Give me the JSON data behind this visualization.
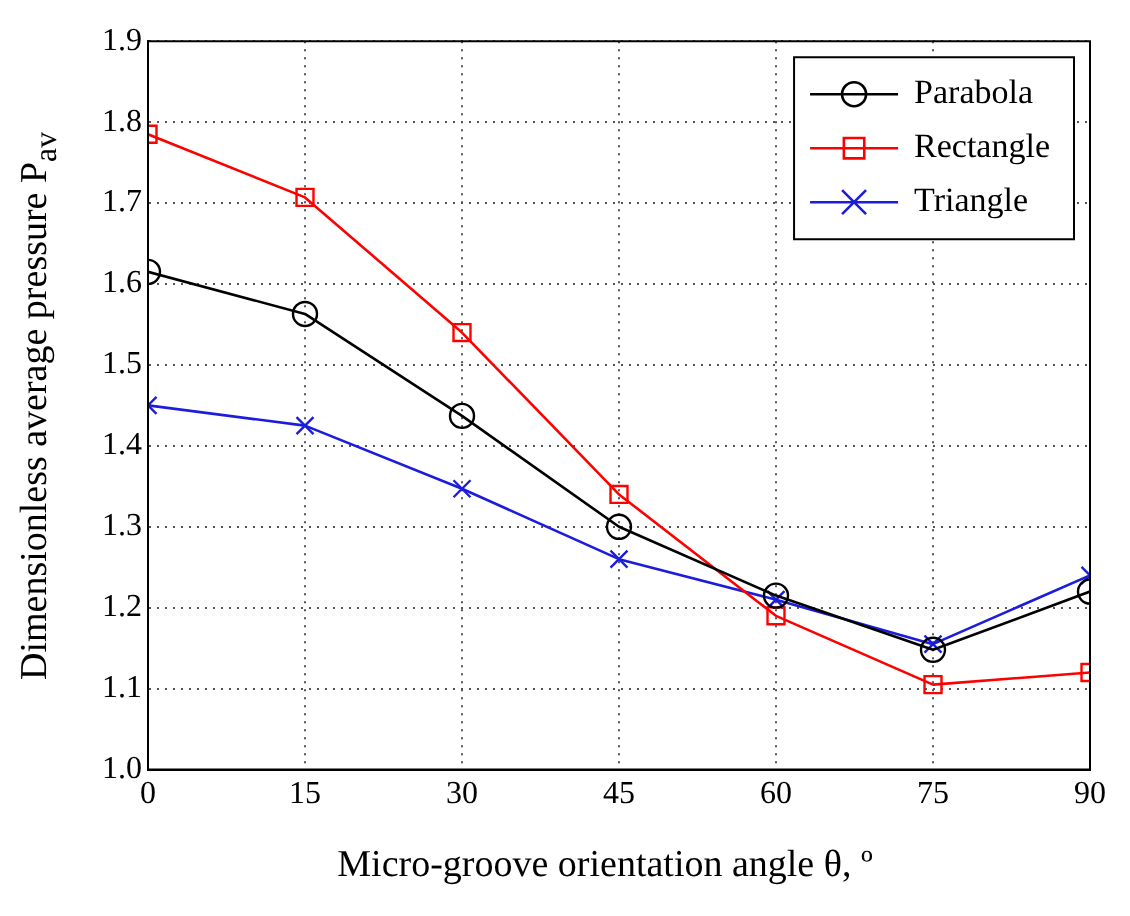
{
  "chart_data": {
    "type": "line",
    "xlabel": "Micro-groove orientation angle θ, º",
    "ylabel": "Dimensionless average pressure P$_{av}$",
    "x": [
      0,
      15,
      30,
      45,
      60,
      75,
      90
    ],
    "series": [
      {
        "name": "Parabola",
        "color": "#000000",
        "marker": "circle",
        "values": [
          1.615,
          1.563,
          1.437,
          1.3,
          1.215,
          1.148,
          1.22
        ]
      },
      {
        "name": "Rectangle",
        "color": "#ff0000",
        "marker": "square",
        "values": [
          1.785,
          1.707,
          1.54,
          1.34,
          1.19,
          1.105,
          1.12
        ]
      },
      {
        "name": "Triangle",
        "color": "#1c1cdc",
        "marker": "cross",
        "values": [
          1.45,
          1.425,
          1.347,
          1.26,
          1.21,
          1.155,
          1.24
        ]
      }
    ],
    "xlim": [
      0,
      90
    ],
    "xticks": [
      0,
      15,
      30,
      45,
      60,
      75,
      90
    ],
    "ylim": [
      1,
      1.9
    ],
    "yticks": [
      {
        "value": 1,
        "label": "1.0"
      },
      1.1,
      1.2,
      1.3,
      1.4,
      1.5,
      1.6,
      1.7,
      1.8,
      1.9
    ],
    "grid": true,
    "legend": "top right",
    "line_style": "solid"
  }
}
